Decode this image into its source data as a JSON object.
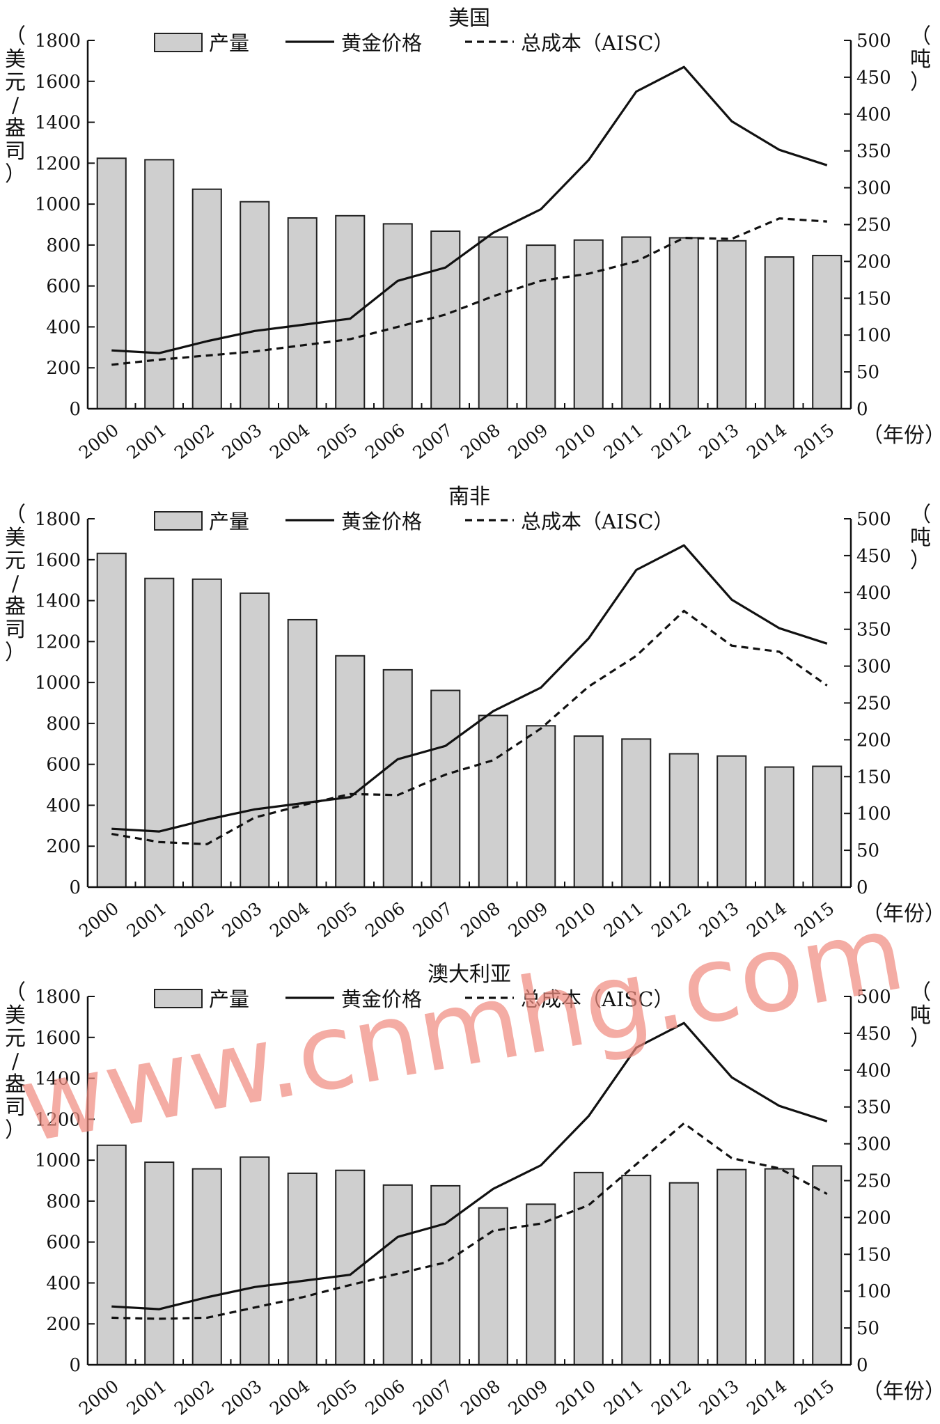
{
  "watermark": "www.cnmhg.com",
  "colors": {
    "bar_fill": "#cfcfcf",
    "bar_stroke": "#222222",
    "line": "#111111",
    "watermark": "#f08a7e"
  },
  "legend": {
    "production": "产量",
    "gold_price": "黄金价格",
    "aisc": "总成本（AISC）"
  },
  "left_axis_label": [
    "（",
    "美",
    "元",
    "/",
    "盎",
    "司",
    "）"
  ],
  "right_axis_label": [
    "（",
    "吨",
    "）"
  ],
  "x_unit_label": "（年份）",
  "chart_data": [
    {
      "type": "bar",
      "title": "美国",
      "categories": [
        "2000",
        "2001",
        "2002",
        "2003",
        "2004",
        "2005",
        "2006",
        "2007",
        "2008",
        "2009",
        "2010",
        "2011",
        "2012",
        "2013",
        "2014",
        "2015"
      ],
      "y_left": {
        "label": "美元/盎司",
        "range": [
          0,
          1800
        ],
        "ticks": [
          0,
          200,
          400,
          600,
          800,
          1000,
          1200,
          1400,
          1600,
          1800
        ]
      },
      "y_right": {
        "label": "吨",
        "range": [
          0,
          500
        ],
        "ticks": [
          0,
          50,
          100,
          150,
          200,
          250,
          300,
          350,
          400,
          450,
          500
        ]
      },
      "series": [
        {
          "name": "产量",
          "type": "bar",
          "axis": "right",
          "values": [
            340,
            338,
            298,
            281,
            259,
            262,
            251,
            241,
            233,
            222,
            229,
            233,
            232,
            228,
            206,
            208
          ]
        },
        {
          "name": "黄金价格",
          "type": "line",
          "axis": "left",
          "values": [
            285,
            272,
            330,
            380,
            410,
            440,
            625,
            690,
            860,
            975,
            1215,
            1550,
            1670,
            1405,
            1265,
            1190
          ]
        },
        {
          "name": "总成本（AISC）",
          "type": "line",
          "dash": true,
          "axis": "left",
          "values": [
            215,
            240,
            260,
            280,
            310,
            340,
            400,
            460,
            550,
            625,
            660,
            720,
            835,
            830,
            930,
            915
          ]
        }
      ]
    },
    {
      "type": "bar",
      "title": "南非",
      "categories": [
        "2000",
        "2001",
        "2002",
        "2003",
        "2004",
        "2005",
        "2006",
        "2007",
        "2008",
        "2009",
        "2010",
        "2011",
        "2012",
        "2013",
        "2014",
        "2015"
      ],
      "y_left": {
        "label": "美元/盎司",
        "range": [
          0,
          1800
        ],
        "ticks": [
          0,
          200,
          400,
          600,
          800,
          1000,
          1200,
          1400,
          1600,
          1800
        ]
      },
      "y_right": {
        "label": "吨",
        "range": [
          0,
          500
        ],
        "ticks": [
          0,
          50,
          100,
          150,
          200,
          250,
          300,
          350,
          400,
          450,
          500
        ]
      },
      "series": [
        {
          "name": "产量",
          "type": "bar",
          "axis": "right",
          "values": [
            453,
            419,
            418,
            399,
            363,
            314,
            295,
            267,
            233,
            219,
            205,
            201,
            181,
            178,
            163,
            164
          ]
        },
        {
          "name": "黄金价格",
          "type": "line",
          "axis": "left",
          "values": [
            285,
            272,
            330,
            380,
            410,
            440,
            625,
            690,
            860,
            975,
            1215,
            1550,
            1670,
            1405,
            1265,
            1190
          ]
        },
        {
          "name": "总成本（AISC）",
          "type": "line",
          "dash": true,
          "axis": "left",
          "values": [
            260,
            220,
            210,
            340,
            400,
            455,
            450,
            550,
            620,
            775,
            980,
            1130,
            1350,
            1180,
            1150,
            985
          ]
        }
      ]
    },
    {
      "type": "bar",
      "title": "澳大利亚",
      "categories": [
        "2000",
        "2001",
        "2002",
        "2003",
        "2004",
        "2005",
        "2006",
        "2007",
        "2008",
        "2009",
        "2010",
        "2011",
        "2012",
        "2013",
        "2014",
        "2015"
      ],
      "y_left": {
        "label": "美元/盎司",
        "range": [
          0,
          1800
        ],
        "ticks": [
          0,
          200,
          400,
          600,
          800,
          1000,
          1200,
          1400,
          1600,
          1800
        ]
      },
      "y_right": {
        "label": "吨",
        "range": [
          0,
          500
        ],
        "ticks": [
          0,
          50,
          100,
          150,
          200,
          250,
          300,
          350,
          400,
          450,
          500
        ]
      },
      "series": [
        {
          "name": "产量",
          "type": "bar",
          "axis": "right",
          "values": [
            298,
            275,
            266,
            282,
            260,
            264,
            244,
            243,
            213,
            218,
            261,
            257,
            247,
            265,
            266,
            270
          ]
        },
        {
          "name": "黄金价格",
          "type": "line",
          "axis": "left",
          "values": [
            285,
            272,
            330,
            380,
            410,
            440,
            625,
            690,
            860,
            975,
            1215,
            1550,
            1670,
            1405,
            1265,
            1190
          ]
        },
        {
          "name": "总成本（AISC）",
          "type": "line",
          "dash": true,
          "axis": "left",
          "values": [
            230,
            225,
            230,
            280,
            330,
            390,
            445,
            500,
            655,
            690,
            780,
            980,
            1180,
            1010,
            960,
            835
          ]
        }
      ]
    }
  ]
}
